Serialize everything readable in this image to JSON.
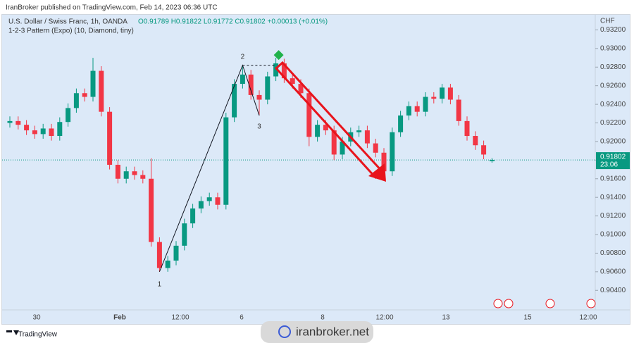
{
  "header": {
    "published": "IranBroker published on TradingView.com, Feb 14, 2023 06:36 UTC"
  },
  "chart_data": {
    "type": "candlestick",
    "title": "U.S. Dollar / Swiss Franc, 1h, OANDA",
    "ohlc_legend": "O0.91789 H0.91822 L0.91772 C0.91802 +0.00013 (+0.01%)",
    "indicator": "1-2-3 Pattern (Expo) (10, Diamond, tiny)",
    "currency": "CHF",
    "up_color": "#089981",
    "down_color": "#f23645",
    "open": [
      0.922,
      0.9222,
      0.9218,
      0.9212,
      0.9208,
      0.9214,
      0.9206,
      0.9221,
      0.9236,
      0.9252,
      0.9248,
      0.9276,
      0.9232,
      0.9175,
      0.916,
      0.9168,
      0.9164,
      0.916,
      0.9092,
      0.9064,
      0.9072,
      0.9088,
      0.9112,
      0.9128,
      0.9136,
      0.914,
      0.9132,
      0.9226,
      0.9262,
      0.9272,
      0.925,
      0.9245,
      0.927,
      0.9284,
      0.9268,
      0.9262,
      0.9252,
      0.9205,
      0.9218,
      0.9212,
      0.9186,
      0.92,
      0.921,
      0.9212,
      0.9198,
      0.9188,
      0.9168,
      0.921,
      0.9228,
      0.9238,
      0.9232,
      0.9248,
      0.9246,
      0.9258,
      0.9245,
      0.9222,
      0.9206,
      0.9196,
      0.91789
    ],
    "high": [
      0.9227,
      0.9227,
      0.9223,
      0.9217,
      0.9219,
      0.9219,
      0.9226,
      0.9241,
      0.9257,
      0.9257,
      0.929,
      0.9281,
      0.9237,
      0.918,
      0.9173,
      0.9173,
      0.9169,
      0.9182,
      0.9097,
      0.9077,
      0.9093,
      0.9117,
      0.9133,
      0.9141,
      0.9145,
      0.9145,
      0.9231,
      0.9267,
      0.9282,
      0.9277,
      0.9255,
      0.9275,
      0.929,
      0.9289,
      0.9273,
      0.9267,
      0.9257,
      0.9223,
      0.9223,
      0.9217,
      0.9205,
      0.9215,
      0.9217,
      0.9217,
      0.9203,
      0.9193,
      0.9215,
      0.9233,
      0.9243,
      0.9243,
      0.9253,
      0.9253,
      0.9262,
      0.9262,
      0.925,
      0.9227,
      0.9211,
      0.9201,
      0.91822
    ],
    "low": [
      0.9215,
      0.9213,
      0.9207,
      0.9203,
      0.9203,
      0.9201,
      0.9201,
      0.9216,
      0.9231,
      0.9243,
      0.9243,
      0.9227,
      0.917,
      0.9155,
      0.9155,
      0.9159,
      0.9155,
      0.9087,
      0.906,
      0.906,
      0.9067,
      0.9083,
      0.9107,
      0.9123,
      0.9131,
      0.9127,
      0.9127,
      0.9221,
      0.9257,
      0.9245,
      0.9228,
      0.924,
      0.9265,
      0.9263,
      0.9257,
      0.9247,
      0.9195,
      0.92,
      0.9207,
      0.918,
      0.9181,
      0.9195,
      0.9205,
      0.9193,
      0.9183,
      0.9162,
      0.9163,
      0.9205,
      0.9223,
      0.9227,
      0.9227,
      0.9241,
      0.9241,
      0.924,
      0.9217,
      0.9201,
      0.9191,
      0.9181,
      0.91772
    ],
    "close": [
      0.9222,
      0.9218,
      0.9212,
      0.9208,
      0.9214,
      0.9206,
      0.9221,
      0.9236,
      0.9252,
      0.9248,
      0.9276,
      0.9232,
      0.9175,
      0.916,
      0.9168,
      0.9164,
      0.916,
      0.9092,
      0.9064,
      0.9072,
      0.9088,
      0.9112,
      0.9128,
      0.9136,
      0.914,
      0.9132,
      0.9226,
      0.9262,
      0.9272,
      0.925,
      0.9245,
      0.927,
      0.9284,
      0.9268,
      0.9262,
      0.9252,
      0.9205,
      0.9218,
      0.9212,
      0.9186,
      0.92,
      0.921,
      0.9212,
      0.9198,
      0.9188,
      0.9168,
      0.921,
      0.9228,
      0.9238,
      0.9232,
      0.9248,
      0.9246,
      0.9258,
      0.9245,
      0.9222,
      0.9206,
      0.9196,
      0.9186,
      0.91802
    ],
    "x_labels": [
      "30",
      "Feb",
      "12:00",
      "6",
      "8",
      "12:00",
      "13",
      "15",
      "12:00"
    ],
    "ylim": [
      0.9019,
      0.9337
    ],
    "yticks": [
      {
        "value": 0.904,
        "label": "0.90400"
      },
      {
        "value": 0.906,
        "label": "0.90600"
      },
      {
        "value": 0.908,
        "label": "0.90800"
      },
      {
        "value": 0.91,
        "label": "0.91000"
      },
      {
        "value": 0.912,
        "label": "0.91200"
      },
      {
        "value": 0.914,
        "label": "0.91400"
      },
      {
        "value": 0.916,
        "label": "0.91600"
      },
      {
        "value": 0.918,
        "label": "0.91800"
      },
      {
        "value": 0.92,
        "label": "0.92000"
      },
      {
        "value": 0.922,
        "label": "0.92200"
      },
      {
        "value": 0.924,
        "label": "0.92400"
      },
      {
        "value": 0.926,
        "label": "0.92600"
      },
      {
        "value": 0.928,
        "label": "0.92800"
      },
      {
        "value": 0.93,
        "label": "0.93000"
      },
      {
        "value": 0.932,
        "label": "0.93200"
      }
    ],
    "last_price": {
      "value": 0.91802,
      "label": "0.91802"
    },
    "countdown": "23:06",
    "pattern_labels": [
      "1",
      "2",
      "3"
    ]
  },
  "footer": {
    "brand": "TradingView",
    "watermark": "iranbroker.net"
  }
}
